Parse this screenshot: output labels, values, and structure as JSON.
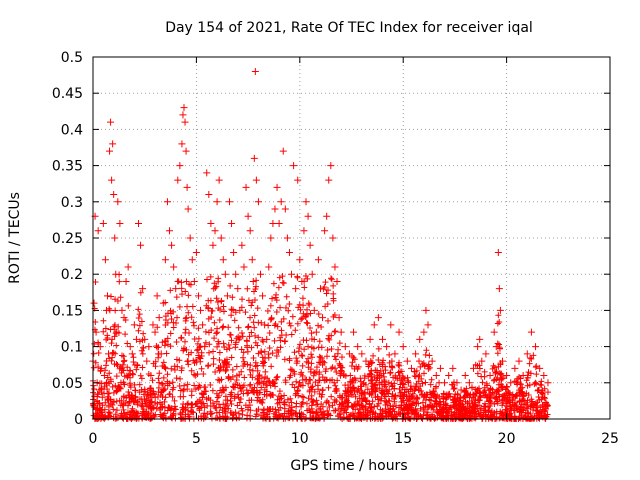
{
  "chart_data": {
    "type": "scatter",
    "title": "Day 154 of 2021, Rate Of TEC Index for receiver iqal",
    "xlabel": "GPS time / hours",
    "ylabel": "ROTI / TECUs",
    "xlim": [
      0,
      25
    ],
    "ylim": [
      0,
      0.5
    ],
    "grid": true,
    "x_ticks": [
      0,
      5,
      10,
      15,
      20,
      25
    ],
    "x_tick_labels": [
      "0",
      "5",
      "10",
      "15",
      "20",
      "25"
    ],
    "y_ticks": [
      0,
      0.05,
      0.1,
      0.15,
      0.2,
      0.25,
      0.3,
      0.35,
      0.4,
      0.45,
      0.5
    ],
    "y_tick_labels": [
      "0",
      "0.05",
      "0.1",
      "0.15",
      "0.2",
      "0.25",
      "0.3",
      "0.35",
      "0.4",
      "0.45",
      "0.5"
    ],
    "marker": "+",
    "series": [
      {
        "name": "ROTI",
        "color": "#ff0000",
        "points": [
          [
            0.0,
            0.08
          ],
          [
            0.05,
            0.16
          ],
          [
            0.1,
            0.28
          ],
          [
            0.15,
            0.12
          ],
          [
            0.2,
            0.05
          ],
          [
            0.25,
            0.26
          ],
          [
            0.3,
            0.04
          ],
          [
            0.35,
            0.1
          ],
          [
            0.4,
            0.07
          ],
          [
            0.45,
            0.03
          ],
          [
            0.5,
            0.27
          ],
          [
            0.55,
            0.06
          ],
          [
            0.6,
            0.22
          ],
          [
            0.65,
            0.15
          ],
          [
            0.7,
            0.17
          ],
          [
            0.75,
            0.09
          ],
          [
            0.8,
            0.37
          ],
          [
            0.85,
            0.41
          ],
          [
            0.9,
            0.33
          ],
          [
            0.95,
            0.38
          ],
          [
            1.0,
            0.31
          ],
          [
            1.05,
            0.25
          ],
          [
            1.1,
            0.2
          ],
          [
            1.15,
            0.12
          ],
          [
            1.2,
            0.3
          ],
          [
            1.3,
            0.27
          ],
          [
            1.4,
            0.15
          ],
          [
            1.5,
            0.14
          ],
          [
            1.6,
            0.19
          ],
          [
            1.7,
            0.21
          ],
          [
            1.8,
            0.1
          ],
          [
            1.9,
            0.09
          ],
          [
            2.0,
            0.13
          ],
          [
            2.1,
            0.11
          ],
          [
            2.2,
            0.27
          ],
          [
            2.3,
            0.24
          ],
          [
            2.4,
            0.18
          ],
          [
            2.5,
            0.11
          ],
          [
            2.6,
            0.08
          ],
          [
            2.7,
            0.1
          ],
          [
            2.8,
            0.06
          ],
          [
            2.9,
            0.13
          ],
          [
            3.0,
            0.12
          ],
          [
            3.1,
            0.17
          ],
          [
            3.2,
            0.14
          ],
          [
            3.3,
            0.09
          ],
          [
            3.4,
            0.16
          ],
          [
            3.5,
            0.22
          ],
          [
            3.6,
            0.3
          ],
          [
            3.7,
            0.26
          ],
          [
            3.8,
            0.24
          ],
          [
            3.9,
            0.21
          ],
          [
            4.0,
            0.18
          ],
          [
            4.1,
            0.33
          ],
          [
            4.2,
            0.35
          ],
          [
            4.3,
            0.38
          ],
          [
            4.35,
            0.42
          ],
          [
            4.4,
            0.43
          ],
          [
            4.45,
            0.41
          ],
          [
            4.5,
            0.37
          ],
          [
            4.55,
            0.32
          ],
          [
            4.6,
            0.29
          ],
          [
            4.7,
            0.25
          ],
          [
            4.8,
            0.22
          ],
          [
            4.9,
            0.19
          ],
          [
            5.0,
            0.23
          ],
          [
            5.1,
            0.17
          ],
          [
            5.2,
            0.15
          ],
          [
            5.3,
            0.13
          ],
          [
            5.4,
            0.1
          ],
          [
            5.5,
            0.34
          ],
          [
            5.6,
            0.31
          ],
          [
            5.7,
            0.27
          ],
          [
            5.8,
            0.24
          ],
          [
            5.9,
            0.26
          ],
          [
            6.0,
            0.3
          ],
          [
            6.1,
            0.33
          ],
          [
            6.2,
            0.25
          ],
          [
            6.3,
            0.22
          ],
          [
            6.4,
            0.2
          ],
          [
            6.5,
            0.17
          ],
          [
            6.6,
            0.3
          ],
          [
            6.7,
            0.27
          ],
          [
            6.8,
            0.23
          ],
          [
            6.9,
            0.2
          ],
          [
            7.0,
            0.18
          ],
          [
            7.1,
            0.15
          ],
          [
            7.2,
            0.24
          ],
          [
            7.3,
            0.21
          ],
          [
            7.4,
            0.32
          ],
          [
            7.5,
            0.28
          ],
          [
            7.6,
            0.26
          ],
          [
            7.7,
            0.22
          ],
          [
            7.75,
            0.19
          ],
          [
            7.8,
            0.36
          ],
          [
            7.85,
            0.48
          ],
          [
            7.9,
            0.33
          ],
          [
            8.0,
            0.3
          ],
          [
            8.1,
            0.2
          ],
          [
            8.2,
            0.17
          ],
          [
            8.3,
            0.13
          ],
          [
            8.4,
            0.11
          ],
          [
            8.5,
            0.21
          ],
          [
            8.6,
            0.25
          ],
          [
            8.7,
            0.27
          ],
          [
            8.8,
            0.29
          ],
          [
            8.9,
            0.32
          ],
          [
            9.0,
            0.27
          ],
          [
            9.1,
            0.3
          ],
          [
            9.2,
            0.37
          ],
          [
            9.3,
            0.29
          ],
          [
            9.4,
            0.25
          ],
          [
            9.5,
            0.23
          ],
          [
            9.6,
            0.2
          ],
          [
            9.7,
            0.35
          ],
          [
            9.8,
            0.18
          ],
          [
            9.9,
            0.33
          ],
          [
            10.0,
            0.22
          ],
          [
            10.1,
            0.19
          ],
          [
            10.2,
            0.26
          ],
          [
            10.3,
            0.3
          ],
          [
            10.4,
            0.28
          ],
          [
            10.5,
            0.24
          ],
          [
            10.6,
            0.2
          ],
          [
            10.7,
            0.15
          ],
          [
            10.8,
            0.12
          ],
          [
            10.9,
            0.22
          ],
          [
            11.0,
            0.18
          ],
          [
            11.1,
            0.14
          ],
          [
            11.2,
            0.26
          ],
          [
            11.3,
            0.28
          ],
          [
            11.4,
            0.33
          ],
          [
            11.5,
            0.35
          ],
          [
            11.6,
            0.25
          ],
          [
            11.7,
            0.21
          ],
          [
            11.8,
            0.19
          ],
          [
            11.9,
            0.14
          ],
          [
            12.0,
            0.12
          ],
          [
            12.2,
            0.1
          ],
          [
            12.4,
            0.09
          ],
          [
            12.6,
            0.12
          ],
          [
            12.8,
            0.1
          ],
          [
            13.0,
            0.09
          ],
          [
            13.2,
            0.08
          ],
          [
            13.4,
            0.11
          ],
          [
            13.6,
            0.13
          ],
          [
            13.8,
            0.14
          ],
          [
            14.0,
            0.11
          ],
          [
            14.2,
            0.1
          ],
          [
            14.4,
            0.13
          ],
          [
            14.6,
            0.09
          ],
          [
            14.8,
            0.12
          ],
          [
            15.0,
            0.1
          ],
          [
            15.2,
            0.08
          ],
          [
            15.4,
            0.07
          ],
          [
            15.6,
            0.09
          ],
          [
            15.8,
            0.11
          ],
          [
            16.0,
            0.12
          ],
          [
            16.1,
            0.15
          ],
          [
            16.2,
            0.13
          ],
          [
            16.4,
            0.08
          ],
          [
            16.6,
            0.06
          ],
          [
            16.8,
            0.07
          ],
          [
            17.0,
            0.05
          ],
          [
            17.2,
            0.06
          ],
          [
            17.4,
            0.07
          ],
          [
            17.6,
            0.05
          ],
          [
            17.8,
            0.04
          ],
          [
            18.0,
            0.06
          ],
          [
            18.2,
            0.05
          ],
          [
            18.4,
            0.07
          ],
          [
            18.6,
            0.1
          ],
          [
            18.7,
            0.11
          ],
          [
            18.8,
            0.08
          ],
          [
            19.0,
            0.09
          ],
          [
            19.2,
            0.06
          ],
          [
            19.4,
            0.12
          ],
          [
            19.5,
            0.1
          ],
          [
            19.6,
            0.23
          ],
          [
            19.65,
            0.18
          ],
          [
            19.7,
            0.15
          ],
          [
            19.8,
            0.08
          ],
          [
            20.0,
            0.06
          ],
          [
            20.2,
            0.05
          ],
          [
            20.4,
            0.07
          ],
          [
            20.6,
            0.08
          ],
          [
            20.8,
            0.06
          ],
          [
            21.0,
            0.09
          ],
          [
            21.2,
            0.12
          ],
          [
            21.4,
            0.1
          ],
          [
            21.6,
            0.07
          ],
          [
            21.8,
            0.06
          ],
          [
            22.0,
            0.05
          ]
        ]
      }
    ]
  }
}
